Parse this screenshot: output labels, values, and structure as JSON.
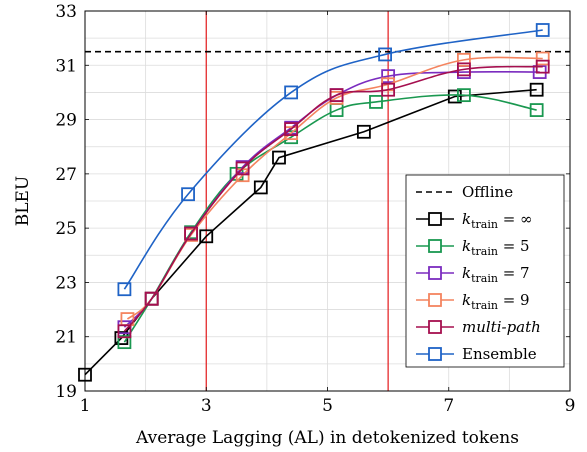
{
  "chart_data": {
    "type": "line",
    "title": "",
    "xlabel": "Average Lagging (AL) in detokenized tokens",
    "ylabel": "BLEU",
    "xlim": [
      1,
      9
    ],
    "ylim": [
      19,
      33
    ],
    "xticks": [
      1,
      3,
      5,
      7,
      9
    ],
    "yticks": [
      19,
      21,
      23,
      25,
      27,
      29,
      31,
      33
    ],
    "grid": true,
    "legend_position": "bottom-right",
    "vertical_lines": [
      {
        "x": 3,
        "color": "#e41a1c"
      },
      {
        "x": 6,
        "color": "#e41a1c"
      }
    ],
    "reference_line": {
      "name": "Offline",
      "y": 31.5,
      "style": "dashed",
      "color": "#000000"
    },
    "series": [
      {
        "name": "k_train = ∞",
        "legend": {
          "base": "k",
          "sub": "train",
          "rel": "= ∞"
        },
        "color": "#000000",
        "smooth": false,
        "points": [
          [
            1.0,
            19.6
          ],
          [
            1.6,
            20.95
          ],
          [
            2.1,
            22.4
          ],
          [
            3.0,
            24.7
          ],
          [
            3.9,
            26.5
          ],
          [
            4.2,
            27.6
          ],
          [
            5.6,
            28.55
          ],
          [
            7.1,
            29.85
          ],
          [
            8.45,
            30.1
          ]
        ]
      },
      {
        "name": "k_train = 5",
        "legend": {
          "base": "k",
          "sub": "train",
          "rel": "= 5"
        },
        "color": "#1a9850",
        "smooth": true,
        "points": [
          [
            1.65,
            20.8
          ],
          [
            2.1,
            22.4
          ],
          [
            2.75,
            24.85
          ],
          [
            3.5,
            27.0
          ],
          [
            4.4,
            28.35
          ],
          [
            5.15,
            29.35
          ],
          [
            5.8,
            29.65
          ],
          [
            7.25,
            29.9
          ],
          [
            8.45,
            29.35
          ]
        ]
      },
      {
        "name": "k_train = 7",
        "legend": {
          "base": "k",
          "sub": "train",
          "rel": "= 7"
        },
        "color": "#7b2cbf",
        "smooth": true,
        "points": [
          [
            1.65,
            21.35
          ],
          [
            2.1,
            22.4
          ],
          [
            2.75,
            24.8
          ],
          [
            3.6,
            27.25
          ],
          [
            4.4,
            28.7
          ],
          [
            5.15,
            29.9
          ],
          [
            6.0,
            30.6
          ],
          [
            7.25,
            30.75
          ],
          [
            8.5,
            30.75
          ]
        ]
      },
      {
        "name": "k_train = 9",
        "legend": {
          "base": "k",
          "sub": "train",
          "rel": "= 9"
        },
        "color": "#f4845f",
        "smooth": true,
        "points": [
          [
            1.7,
            21.65
          ],
          [
            2.1,
            22.4
          ],
          [
            2.75,
            24.75
          ],
          [
            3.6,
            26.95
          ],
          [
            4.4,
            28.5
          ],
          [
            5.15,
            29.8
          ],
          [
            6.0,
            30.3
          ],
          [
            7.25,
            31.2
          ],
          [
            8.55,
            31.25
          ]
        ]
      },
      {
        "name": "multi-path",
        "legend": {
          "italic": "multi-path"
        },
        "color": "#a50f4f",
        "smooth": true,
        "points": [
          [
            1.65,
            21.2
          ],
          [
            2.1,
            22.4
          ],
          [
            2.75,
            24.8
          ],
          [
            3.6,
            27.2
          ],
          [
            4.4,
            28.65
          ],
          [
            5.15,
            29.9
          ],
          [
            6.0,
            30.1
          ],
          [
            7.25,
            30.85
          ],
          [
            8.55,
            30.95
          ]
        ]
      },
      {
        "name": "Ensemble",
        "legend": {
          "text": "Ensemble"
        },
        "color": "#1f63c6",
        "smooth": true,
        "points": [
          [
            1.65,
            22.75
          ],
          [
            2.7,
            26.25
          ],
          [
            4.4,
            30.0
          ],
          [
            5.95,
            31.4
          ],
          [
            8.55,
            32.3
          ]
        ]
      }
    ]
  }
}
